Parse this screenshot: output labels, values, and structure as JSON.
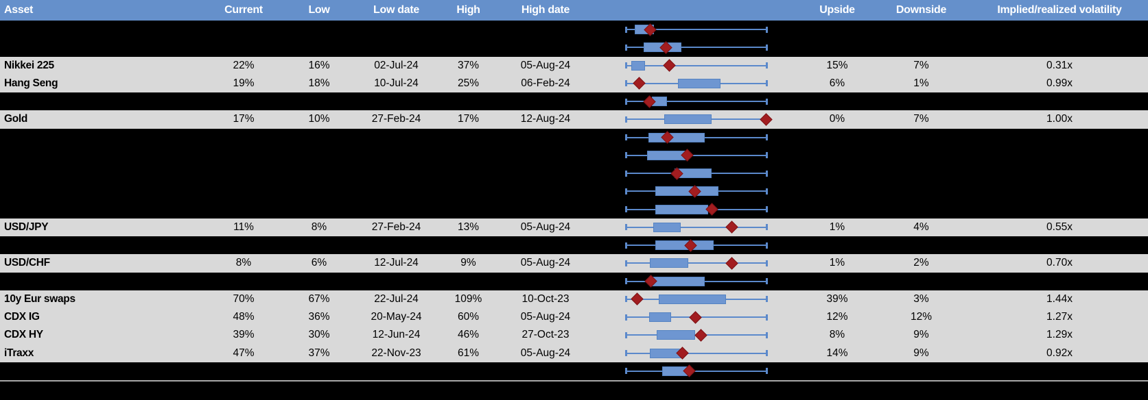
{
  "header": {
    "columns": [
      "Asset",
      "Current",
      "Low",
      "Low date",
      "High",
      "High date",
      "Upside",
      "Downside",
      "Implied/realized volatility"
    ]
  },
  "colors": {
    "header_bg": "#6590CB",
    "visible_row_bg": "#D9D9D9",
    "hidden_row_bg": "#000000",
    "box_fill": "#6E96D1",
    "whisker_blue": "#5B89CB",
    "marker_red": "#A21D20"
  },
  "chart_note": "Each row shows a horizontal range whisker (0-100% of 52-week span), an interquartile-style box and a red diamond current marker; box/marker positions are percent of whisker span.",
  "rows": [
    {
      "type": "hidden",
      "asset": "",
      "current": "",
      "low": "",
      "low_date": "",
      "high": "",
      "high_date": "",
      "upside": "",
      "downside": "",
      "vol": "",
      "chart": {
        "box_start_pct": 6.3,
        "box_end_pct": 19.9,
        "marker_pct": 17.5
      }
    },
    {
      "type": "hidden",
      "asset": "",
      "current": "",
      "low": "",
      "low_date": "",
      "high": "",
      "high_date": "",
      "upside": "",
      "downside": "",
      "vol": "",
      "chart": {
        "box_start_pct": 12.6,
        "box_end_pct": 39.3,
        "marker_pct": 28.6
      }
    },
    {
      "type": "data",
      "asset": "Nikkei 225",
      "current": "22%",
      "low": "16%",
      "low_date": "02-Jul-24",
      "high": "37%",
      "high_date": "05-Aug-24",
      "upside": "15%",
      "downside": "7%",
      "vol": "0.31x",
      "chart": {
        "box_start_pct": 3.9,
        "box_end_pct": 13.6,
        "marker_pct": 31.1
      }
    },
    {
      "type": "data",
      "asset": "Hang Seng",
      "current": "19%",
      "low": "18%",
      "low_date": "10-Jul-24",
      "high": "25%",
      "high_date": "06-Feb-24",
      "upside": "6%",
      "downside": "1%",
      "vol": "0.99x",
      "chart": {
        "box_start_pct": 36.9,
        "box_end_pct": 67.0,
        "marker_pct": 9.7
      }
    },
    {
      "type": "hidden",
      "asset": "",
      "current": "",
      "low": "",
      "low_date": "",
      "high": "",
      "high_date": "",
      "upside": "",
      "downside": "",
      "vol": "",
      "chart": {
        "box_start_pct": 18.4,
        "box_end_pct": 29.1,
        "marker_pct": 17.0
      }
    },
    {
      "type": "data",
      "asset": "Gold",
      "current": "17%",
      "low": "10%",
      "low_date": "27-Feb-24",
      "high": "17%",
      "high_date": "12-Aug-24",
      "upside": "0%",
      "downside": "7%",
      "vol": "1.00x",
      "chart": {
        "box_start_pct": 27.2,
        "box_end_pct": 60.7,
        "marker_pct": 99.5
      }
    },
    {
      "type": "hidden",
      "asset": "",
      "current": "",
      "low": "",
      "low_date": "",
      "high": "",
      "high_date": "",
      "upside": "",
      "downside": "",
      "vol": "",
      "chart": {
        "box_start_pct": 16.0,
        "box_end_pct": 55.8,
        "marker_pct": 29.6
      }
    },
    {
      "type": "hidden",
      "asset": "",
      "current": "",
      "low": "",
      "low_date": "",
      "high": "",
      "high_date": "",
      "upside": "",
      "downside": "",
      "vol": "",
      "chart": {
        "box_start_pct": 15.0,
        "box_end_pct": 43.7,
        "marker_pct": 43.7
      }
    },
    {
      "type": "hidden",
      "asset": "",
      "current": "",
      "low": "",
      "low_date": "",
      "high": "",
      "high_date": "",
      "upside": "",
      "downside": "",
      "vol": "",
      "chart": {
        "box_start_pct": 34.5,
        "box_end_pct": 60.7,
        "marker_pct": 36.4
      }
    },
    {
      "type": "hidden",
      "asset": "",
      "current": "",
      "low": "",
      "low_date": "",
      "high": "",
      "high_date": "",
      "upside": "",
      "downside": "",
      "vol": "",
      "chart": {
        "box_start_pct": 20.9,
        "box_end_pct": 65.5,
        "marker_pct": 49.0
      }
    },
    {
      "type": "hidden",
      "asset": "",
      "current": "",
      "low": "",
      "low_date": "",
      "high": "",
      "high_date": "",
      "upside": "",
      "downside": "",
      "vol": "",
      "chart": {
        "box_start_pct": 20.9,
        "box_end_pct": 58.3,
        "marker_pct": 61.2
      }
    },
    {
      "type": "data",
      "asset": "USD/JPY",
      "current": "11%",
      "low": "8%",
      "low_date": "27-Feb-24",
      "high": "13%",
      "high_date": "05-Aug-24",
      "upside": "1%",
      "downside": "4%",
      "vol": "0.55x",
      "chart": {
        "box_start_pct": 19.4,
        "box_end_pct": 38.8,
        "marker_pct": 75.2
      }
    },
    {
      "type": "hidden",
      "asset": "",
      "current": "",
      "low": "",
      "low_date": "",
      "high": "",
      "high_date": "",
      "upside": "",
      "downside": "",
      "vol": "",
      "chart": {
        "box_start_pct": 20.9,
        "box_end_pct": 62.1,
        "marker_pct": 46.1
      }
    },
    {
      "type": "data",
      "asset": "USD/CHF",
      "current": "8%",
      "low": "6%",
      "low_date": "12-Jul-24",
      "high": "9%",
      "high_date": "05-Aug-24",
      "upside": "1%",
      "downside": "2%",
      "vol": "0.70x",
      "chart": {
        "box_start_pct": 17.0,
        "box_end_pct": 44.2,
        "marker_pct": 75.2
      }
    },
    {
      "type": "hidden",
      "asset": "",
      "current": "",
      "low": "",
      "low_date": "",
      "high": "",
      "high_date": "",
      "upside": "",
      "downside": "",
      "vol": "",
      "chart": {
        "box_start_pct": 18.4,
        "box_end_pct": 55.8,
        "marker_pct": 18.0
      }
    },
    {
      "type": "data",
      "asset": "10y Eur swaps",
      "current": "70%",
      "low": "67%",
      "low_date": "22-Jul-24",
      "high": "109%",
      "high_date": "10-Oct-23",
      "upside": "39%",
      "downside": "3%",
      "vol": "1.44x",
      "chart": {
        "box_start_pct": 23.3,
        "box_end_pct": 70.9,
        "marker_pct": 8.3
      }
    },
    {
      "type": "data",
      "asset": "CDX IG",
      "current": "48%",
      "low": "36%",
      "low_date": "20-May-24",
      "high": "60%",
      "high_date": "05-Aug-24",
      "upside": "12%",
      "downside": "12%",
      "vol": "1.27x",
      "chart": {
        "box_start_pct": 16.5,
        "box_end_pct": 32.0,
        "marker_pct": 49.5
      }
    },
    {
      "type": "data",
      "asset": "CDX HY",
      "current": "39%",
      "low": "30%",
      "low_date": "12-Jun-24",
      "high": "46%",
      "high_date": "27-Oct-23",
      "upside": "8%",
      "downside": "9%",
      "vol": "1.29x",
      "chart": {
        "box_start_pct": 21.8,
        "box_end_pct": 49.0,
        "marker_pct": 53.4
      }
    },
    {
      "type": "data",
      "asset": "iTraxx",
      "current": "47%",
      "low": "37%",
      "low_date": "22-Nov-23",
      "high": "61%",
      "high_date": "05-Aug-24",
      "upside": "14%",
      "downside": "9%",
      "vol": "0.92x",
      "chart": {
        "box_start_pct": 17.0,
        "box_end_pct": 39.3,
        "marker_pct": 40.3
      }
    },
    {
      "type": "hidden",
      "asset": "",
      "current": "",
      "low": "",
      "low_date": "",
      "high": "",
      "high_date": "",
      "upside": "",
      "downside": "",
      "vol": "",
      "chart": {
        "box_start_pct": 25.7,
        "box_end_pct": 43.7,
        "marker_pct": 45.1
      }
    }
  ]
}
